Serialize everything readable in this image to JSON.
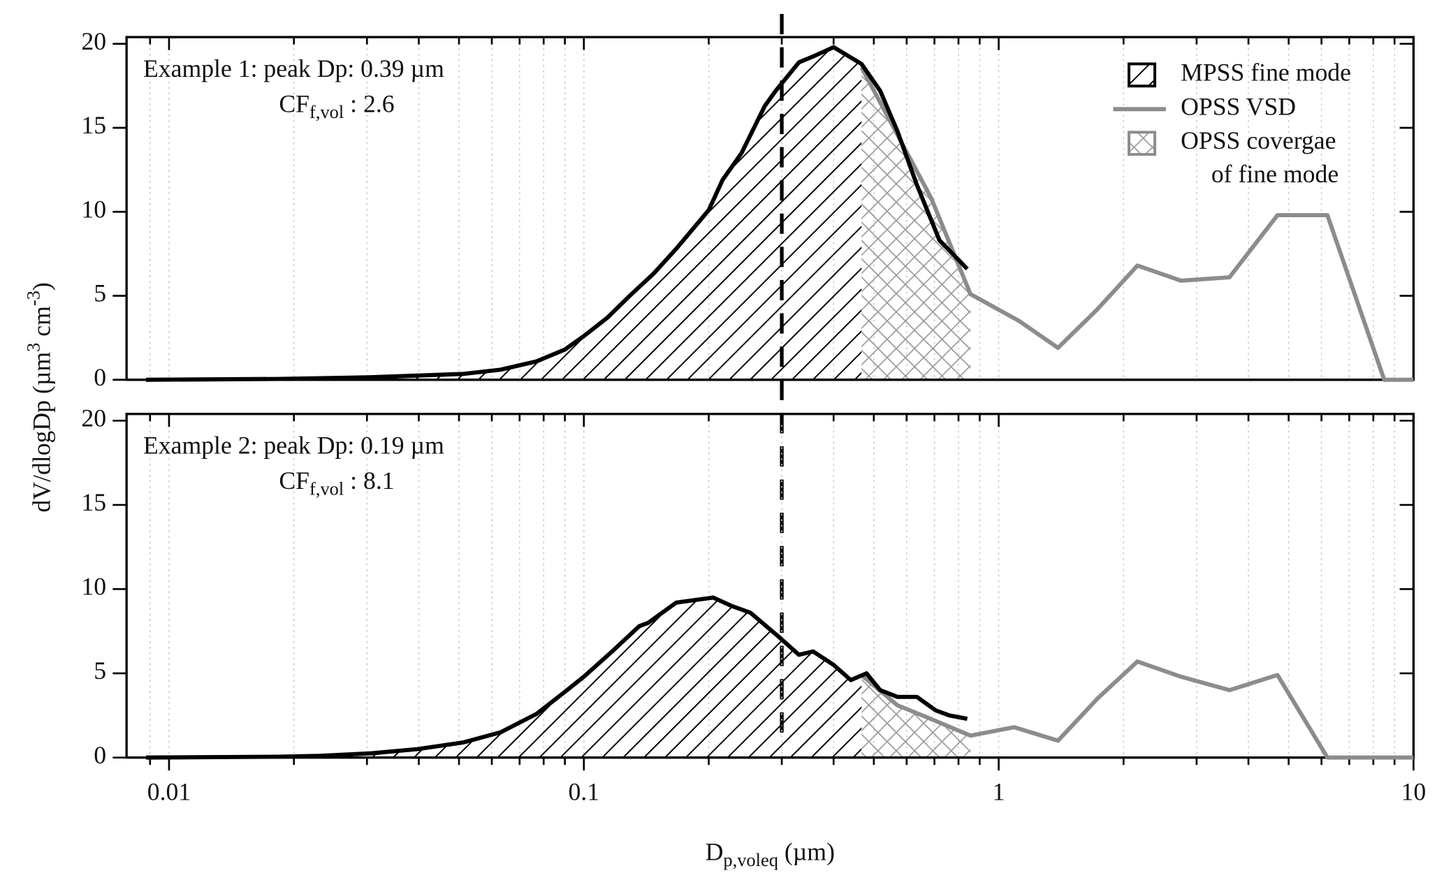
{
  "chart_data": [
    {
      "type": "line",
      "xscale": "log",
      "xlim": [
        0.0079,
        10
      ],
      "ylim": [
        0,
        20.4
      ],
      "yticks": [
        0,
        5,
        10,
        15,
        20
      ],
      "xticks": [
        0.01,
        0.1,
        1,
        10
      ],
      "xminorticks": [
        0.009,
        0.02,
        0.03,
        0.04,
        0.05,
        0.06,
        0.07,
        0.08,
        0.09,
        0.2,
        0.3,
        0.4,
        0.5,
        0.6,
        0.7,
        0.8,
        0.9,
        2,
        3,
        4,
        5,
        6,
        7,
        8,
        9
      ],
      "grid": "x-dotted",
      "legend": "upper right",
      "vline": 0.3,
      "ylabel": [
        {
          "text": "dV/dlogDp (µm"
        },
        {
          "sup": "3"
        },
        {
          "text": " cm"
        },
        {
          "sup": "-3"
        },
        {
          "text": ")"
        }
      ],
      "annotations": [
        [
          {
            "text": "Example 1:  peak Dp: 0.39 µm"
          }
        ],
        [
          {
            "text": "CF"
          },
          {
            "sub": "f,vol"
          },
          {
            "text": " : 2.6"
          }
        ]
      ],
      "series": [
        {
          "name": "MPSS fine mode",
          "color": "#000000",
          "fill": "hatch",
          "x": [
            0.0088,
            0.0184,
            0.0307,
            0.0397,
            0.0513,
            0.063,
            0.077,
            0.09,
            0.1,
            0.114,
            0.129,
            0.147,
            0.167,
            0.2,
            0.216,
            0.24,
            0.273,
            0.29,
            0.33,
            0.361,
            0.4,
            0.467,
            0.518,
            0.57,
            0.635,
            0.72,
            0.84
          ],
          "values": [
            0,
            0.05,
            0.15,
            0.25,
            0.35,
            0.6,
            1.1,
            1.8,
            2.6,
            3.7,
            5.0,
            6.3,
            7.8,
            10.1,
            11.9,
            13.5,
            16.3,
            17.2,
            18.9,
            19.3,
            19.8,
            18.8,
            17.2,
            14.8,
            11.6,
            8.3,
            6.6
          ]
        },
        {
          "name": "OPSS VSD",
          "color": "#8c8c8c",
          "fill": "none",
          "x": [
            0.467,
            0.688,
            0.855,
            1.12,
            1.39,
            1.73,
            2.16,
            2.75,
            3.6,
            4.7,
            6.2,
            8.5,
            10
          ],
          "values": [
            18.6,
            10.8,
            5.1,
            3.5,
            1.9,
            4.2,
            6.8,
            5.9,
            6.1,
            9.8,
            9.8,
            0,
            0
          ]
        },
        {
          "name": "OPSS covergae\nof fine mode",
          "color": "#8c8c8c",
          "fill": "crosshatch",
          "x": [
            0.467,
            0.688,
            0.855
          ],
          "values": [
            18.6,
            10.8,
            5.1
          ]
        }
      ]
    },
    {
      "type": "line",
      "xscale": "log",
      "xlim": [
        0.0079,
        10
      ],
      "ylim": [
        0,
        20.4
      ],
      "yticks": [
        0,
        5,
        10,
        15,
        20
      ],
      "xticks": [
        0.01,
        0.1,
        1,
        10
      ],
      "xminorticks": [
        0.009,
        0.02,
        0.03,
        0.04,
        0.05,
        0.06,
        0.07,
        0.08,
        0.09,
        0.2,
        0.3,
        0.4,
        0.5,
        0.6,
        0.7,
        0.8,
        0.9,
        2,
        3,
        4,
        5,
        6,
        7,
        8,
        9
      ],
      "grid": "x-dotted",
      "xlabel": [
        {
          "text": "D"
        },
        {
          "sub": "p,voleq"
        },
        {
          "text": "  (µm)"
        }
      ],
      "annotations": [
        [
          {
            "text": "Example 2:  peak Dp: 0.19 µm"
          }
        ],
        [
          {
            "text": "CF"
          },
          {
            "sub": "f,vol"
          },
          {
            "text": " : 8.1"
          }
        ]
      ],
      "series": [
        {
          "color": "#000000",
          "fill": "hatch",
          "x": [
            0.0088,
            0.0184,
            0.023,
            0.0307,
            0.0397,
            0.0513,
            0.063,
            0.077,
            0.09,
            0.1,
            0.117,
            0.136,
            0.143,
            0.167,
            0.205,
            0.227,
            0.252,
            0.294,
            0.33,
            0.357,
            0.4,
            0.44,
            0.48,
            0.518,
            0.57,
            0.635,
            0.705,
            0.76,
            0.84
          ],
          "values": [
            0,
            0.05,
            0.1,
            0.25,
            0.5,
            0.9,
            1.5,
            2.6,
            3.9,
            4.8,
            6.3,
            7.8,
            8.0,
            9.2,
            9.5,
            9.0,
            8.6,
            7.2,
            6.1,
            6.3,
            5.5,
            4.6,
            5.0,
            4.0,
            3.6,
            3.6,
            2.8,
            2.5,
            2.3
          ]
        },
        {
          "color": "#8c8c8c",
          "fill": "none",
          "x": [
            0.467,
            0.57,
            0.67,
            0.855,
            1.09,
            1.39,
            1.73,
            2.16,
            2.75,
            3.6,
            4.7,
            6.2,
            10
          ],
          "values": [
            4.9,
            3.1,
            2.4,
            1.3,
            1.8,
            1.0,
            3.5,
            5.7,
            4.8,
            4.0,
            4.9,
            0,
            0
          ]
        },
        {
          "color": "#8c8c8c",
          "fill": "crosshatch",
          "x": [
            0.467,
            0.57,
            0.67,
            0.855
          ],
          "values": [
            4.9,
            3.1,
            2.4,
            1.3
          ]
        }
      ]
    }
  ]
}
